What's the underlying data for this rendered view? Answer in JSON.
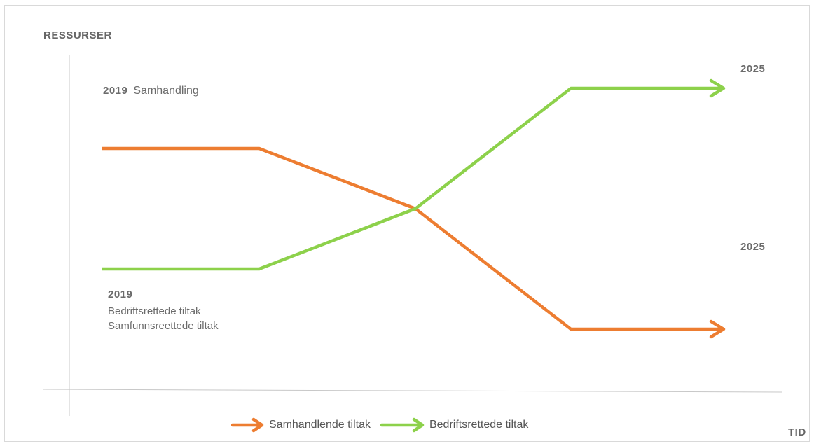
{
  "axes": {
    "y_label": "RESSURSER",
    "x_label": "TID"
  },
  "annotations": {
    "top_left": {
      "year": "2019",
      "text": "Samhandling"
    },
    "bottom_left": {
      "year": "2019",
      "line1": "Bedriftsrettede tiltak",
      "line2": "Samfunnsreettede tiltak"
    },
    "end_top": "2025",
    "end_bottom": "2025"
  },
  "colors": {
    "orange": "#ED7D31",
    "green": "#8DD14B",
    "axis": "#c8c8c8"
  },
  "legend": [
    {
      "label": "Samhandlende tiltak",
      "color": "#ED7D31"
    },
    {
      "label": "Bedriftsrettede tiltak",
      "color": "#8DD14B"
    }
  ]
}
